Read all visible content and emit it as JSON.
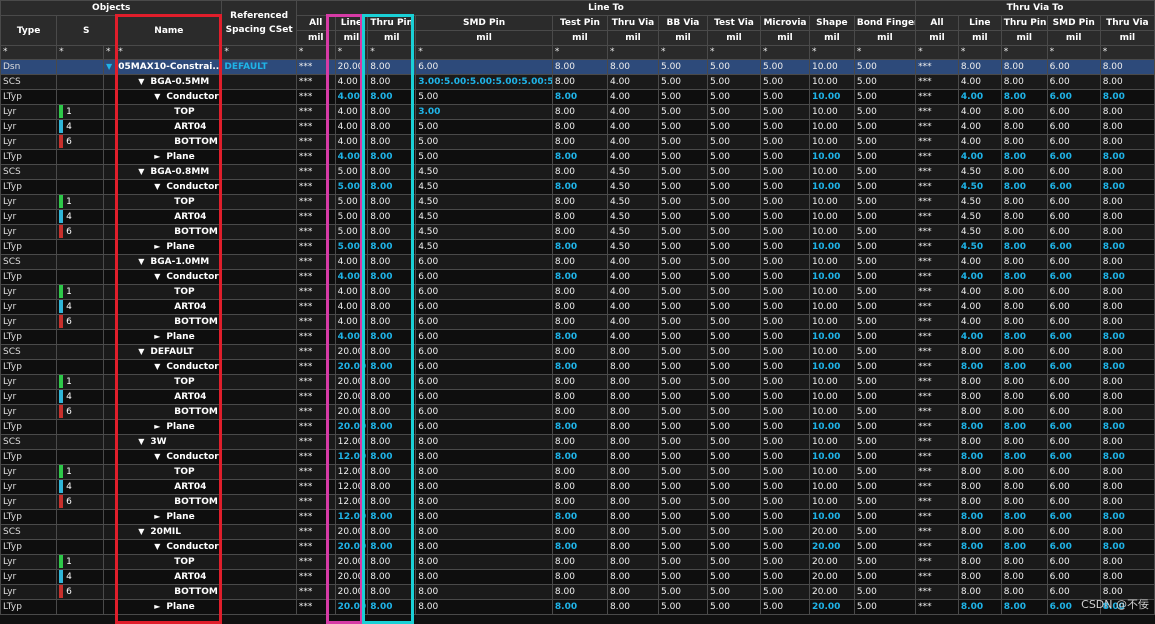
{
  "headers": {
    "objects": "Objects",
    "type": "Type",
    "s": "S",
    "name": "Name",
    "referenced": "Referenced Spacing CSet",
    "line_to": "Line To",
    "thru_via_to": "Thru Via To",
    "cols": [
      "All",
      "Line",
      "Thru Pin",
      "SMD Pin",
      "Test Pin",
      "Thru Via",
      "BB Via",
      "Test Via",
      "Microvia",
      "Shape",
      "Bond Finger",
      "All",
      "Line",
      "Thru Pin",
      "SMD Pin",
      "Thru Via"
    ],
    "unit": "mil",
    "filter": "*"
  },
  "rows": [
    {
      "type": "Dsn",
      "s": "",
      "indent": 0,
      "arrow": "▼",
      "name": "05MAX10-Constrai...",
      "ref": "DEFAULT",
      "v": [
        "***",
        "20.00",
        "8.00",
        "6.00",
        "8.00",
        "8.00",
        "5.00",
        "5.00",
        "5.00",
        "10.00",
        "5.00",
        "***",
        "8.00",
        "8.00",
        "6.00",
        "8.00"
      ],
      "cyan": false,
      "sel": true
    },
    {
      "type": "SCS",
      "s": "",
      "indent": 1,
      "arrow": "▼",
      "name": "BGA-0.5MM",
      "ref": "",
      "v": [
        "***",
        "4.00",
        "8.00",
        "3.00:5.00:5.00:5.00:5.00:5.00",
        "8.00",
        "4.00",
        "5.00",
        "5.00",
        "5.00",
        "10.00",
        "5.00",
        "***",
        "4.00",
        "8.00",
        "6.00",
        "8.00"
      ],
      "cyan": false
    },
    {
      "type": "LTyp",
      "s": "",
      "indent": 2,
      "arrow": "▼",
      "name": "Conductor",
      "ref": "",
      "v": [
        "***",
        "4.00",
        "8.00",
        "5.00",
        "8.00",
        "4.00",
        "5.00",
        "5.00",
        "5.00",
        "10.00",
        "5.00",
        "***",
        "4.00",
        "8.00",
        "6.00",
        "8.00"
      ],
      "cyan": true
    },
    {
      "type": "Lyr",
      "s": "1",
      "bar": "#2ec94a",
      "indent": 3,
      "arrow": "",
      "name": "TOP",
      "ref": "",
      "v": [
        "***",
        "4.00",
        "8.00",
        "3.00",
        "8.00",
        "4.00",
        "5.00",
        "5.00",
        "5.00",
        "10.00",
        "5.00",
        "***",
        "4.00",
        "8.00",
        "6.00",
        "8.00"
      ],
      "cyan": false
    },
    {
      "type": "Lyr",
      "s": "4",
      "bar": "#2fb6d8",
      "indent": 3,
      "arrow": "",
      "name": "ART04",
      "ref": "",
      "v": [
        "***",
        "4.00",
        "8.00",
        "5.00",
        "8.00",
        "4.00",
        "5.00",
        "5.00",
        "5.00",
        "10.00",
        "5.00",
        "***",
        "4.00",
        "8.00",
        "6.00",
        "8.00"
      ],
      "cyan": false
    },
    {
      "type": "Lyr",
      "s": "6",
      "bar": "#c8302c",
      "indent": 3,
      "arrow": "",
      "name": "BOTTOM",
      "ref": "",
      "v": [
        "***",
        "4.00",
        "8.00",
        "5.00",
        "8.00",
        "4.00",
        "5.00",
        "5.00",
        "5.00",
        "10.00",
        "5.00",
        "***",
        "4.00",
        "8.00",
        "6.00",
        "8.00"
      ],
      "cyan": false
    },
    {
      "type": "LTyp",
      "s": "",
      "indent": 2,
      "arrow": "►",
      "name": "Plane",
      "ref": "",
      "v": [
        "***",
        "4.00",
        "8.00",
        "5.00",
        "8.00",
        "4.00",
        "5.00",
        "5.00",
        "5.00",
        "10.00",
        "5.00",
        "***",
        "4.00",
        "8.00",
        "6.00",
        "8.00"
      ],
      "cyan": true
    },
    {
      "type": "SCS",
      "s": "",
      "indent": 1,
      "arrow": "▼",
      "name": "BGA-0.8MM",
      "ref": "",
      "v": [
        "***",
        "5.00",
        "8.00",
        "4.50",
        "8.00",
        "4.50",
        "5.00",
        "5.00",
        "5.00",
        "10.00",
        "5.00",
        "***",
        "4.50",
        "8.00",
        "6.00",
        "8.00"
      ],
      "cyan": false
    },
    {
      "type": "LTyp",
      "s": "",
      "indent": 2,
      "arrow": "▼",
      "name": "Conductor",
      "ref": "",
      "v": [
        "***",
        "5.00",
        "8.00",
        "4.50",
        "8.00",
        "4.50",
        "5.00",
        "5.00",
        "5.00",
        "10.00",
        "5.00",
        "***",
        "4.50",
        "8.00",
        "6.00",
        "8.00"
      ],
      "cyan": true
    },
    {
      "type": "Lyr",
      "s": "1",
      "bar": "#2ec94a",
      "indent": 3,
      "arrow": "",
      "name": "TOP",
      "ref": "",
      "v": [
        "***",
        "5.00",
        "8.00",
        "4.50",
        "8.00",
        "4.50",
        "5.00",
        "5.00",
        "5.00",
        "10.00",
        "5.00",
        "***",
        "4.50",
        "8.00",
        "6.00",
        "8.00"
      ],
      "cyan": false
    },
    {
      "type": "Lyr",
      "s": "4",
      "bar": "#2fb6d8",
      "indent": 3,
      "arrow": "",
      "name": "ART04",
      "ref": "",
      "v": [
        "***",
        "5.00",
        "8.00",
        "4.50",
        "8.00",
        "4.50",
        "5.00",
        "5.00",
        "5.00",
        "10.00",
        "5.00",
        "***",
        "4.50",
        "8.00",
        "6.00",
        "8.00"
      ],
      "cyan": false
    },
    {
      "type": "Lyr",
      "s": "6",
      "bar": "#c8302c",
      "indent": 3,
      "arrow": "",
      "name": "BOTTOM",
      "ref": "",
      "v": [
        "***",
        "5.00",
        "8.00",
        "4.50",
        "8.00",
        "4.50",
        "5.00",
        "5.00",
        "5.00",
        "10.00",
        "5.00",
        "***",
        "4.50",
        "8.00",
        "6.00",
        "8.00"
      ],
      "cyan": false
    },
    {
      "type": "LTyp",
      "s": "",
      "indent": 2,
      "arrow": "►",
      "name": "Plane",
      "ref": "",
      "v": [
        "***",
        "5.00",
        "8.00",
        "4.50",
        "8.00",
        "4.50",
        "5.00",
        "5.00",
        "5.00",
        "10.00",
        "5.00",
        "***",
        "4.50",
        "8.00",
        "6.00",
        "8.00"
      ],
      "cyan": true
    },
    {
      "type": "SCS",
      "s": "",
      "indent": 1,
      "arrow": "▼",
      "name": "BGA-1.0MM",
      "ref": "",
      "v": [
        "***",
        "4.00",
        "8.00",
        "6.00",
        "8.00",
        "4.00",
        "5.00",
        "5.00",
        "5.00",
        "10.00",
        "5.00",
        "***",
        "4.00",
        "8.00",
        "6.00",
        "8.00"
      ],
      "cyan": false
    },
    {
      "type": "LTyp",
      "s": "",
      "indent": 2,
      "arrow": "▼",
      "name": "Conductor",
      "ref": "",
      "v": [
        "***",
        "4.00",
        "8.00",
        "6.00",
        "8.00",
        "4.00",
        "5.00",
        "5.00",
        "5.00",
        "10.00",
        "5.00",
        "***",
        "4.00",
        "8.00",
        "6.00",
        "8.00"
      ],
      "cyan": true
    },
    {
      "type": "Lyr",
      "s": "1",
      "bar": "#2ec94a",
      "indent": 3,
      "arrow": "",
      "name": "TOP",
      "ref": "",
      "v": [
        "***",
        "4.00",
        "8.00",
        "6.00",
        "8.00",
        "4.00",
        "5.00",
        "5.00",
        "5.00",
        "10.00",
        "5.00",
        "***",
        "4.00",
        "8.00",
        "6.00",
        "8.00"
      ],
      "cyan": false
    },
    {
      "type": "Lyr",
      "s": "4",
      "bar": "#2fb6d8",
      "indent": 3,
      "arrow": "",
      "name": "ART04",
      "ref": "",
      "v": [
        "***",
        "4.00",
        "8.00",
        "6.00",
        "8.00",
        "4.00",
        "5.00",
        "5.00",
        "5.00",
        "10.00",
        "5.00",
        "***",
        "4.00",
        "8.00",
        "6.00",
        "8.00"
      ],
      "cyan": false
    },
    {
      "type": "Lyr",
      "s": "6",
      "bar": "#c8302c",
      "indent": 3,
      "arrow": "",
      "name": "BOTTOM",
      "ref": "",
      "v": [
        "***",
        "4.00",
        "8.00",
        "6.00",
        "8.00",
        "4.00",
        "5.00",
        "5.00",
        "5.00",
        "10.00",
        "5.00",
        "***",
        "4.00",
        "8.00",
        "6.00",
        "8.00"
      ],
      "cyan": false
    },
    {
      "type": "LTyp",
      "s": "",
      "indent": 2,
      "arrow": "►",
      "name": "Plane",
      "ref": "",
      "v": [
        "***",
        "4.00",
        "8.00",
        "6.00",
        "8.00",
        "4.00",
        "5.00",
        "5.00",
        "5.00",
        "10.00",
        "5.00",
        "***",
        "4.00",
        "8.00",
        "6.00",
        "8.00"
      ],
      "cyan": true
    },
    {
      "type": "SCS",
      "s": "",
      "indent": 1,
      "arrow": "▼",
      "name": "DEFAULT",
      "ref": "",
      "v": [
        "***",
        "20.00",
        "8.00",
        "6.00",
        "8.00",
        "8.00",
        "5.00",
        "5.00",
        "5.00",
        "10.00",
        "5.00",
        "***",
        "8.00",
        "8.00",
        "6.00",
        "8.00"
      ],
      "cyan": false
    },
    {
      "type": "LTyp",
      "s": "",
      "indent": 2,
      "arrow": "▼",
      "name": "Conductor",
      "ref": "",
      "v": [
        "***",
        "20.00",
        "8.00",
        "6.00",
        "8.00",
        "8.00",
        "5.00",
        "5.00",
        "5.00",
        "10.00",
        "5.00",
        "***",
        "8.00",
        "8.00",
        "6.00",
        "8.00"
      ],
      "cyan": true
    },
    {
      "type": "Lyr",
      "s": "1",
      "bar": "#2ec94a",
      "indent": 3,
      "arrow": "",
      "name": "TOP",
      "ref": "",
      "v": [
        "***",
        "20.00",
        "8.00",
        "6.00",
        "8.00",
        "8.00",
        "5.00",
        "5.00",
        "5.00",
        "10.00",
        "5.00",
        "***",
        "8.00",
        "8.00",
        "6.00",
        "8.00"
      ],
      "cyan": false
    },
    {
      "type": "Lyr",
      "s": "4",
      "bar": "#2fb6d8",
      "indent": 3,
      "arrow": "",
      "name": "ART04",
      "ref": "",
      "v": [
        "***",
        "20.00",
        "8.00",
        "6.00",
        "8.00",
        "8.00",
        "5.00",
        "5.00",
        "5.00",
        "10.00",
        "5.00",
        "***",
        "8.00",
        "8.00",
        "6.00",
        "8.00"
      ],
      "cyan": false
    },
    {
      "type": "Lyr",
      "s": "6",
      "bar": "#c8302c",
      "indent": 3,
      "arrow": "",
      "name": "BOTTOM",
      "ref": "",
      "v": [
        "***",
        "20.00",
        "8.00",
        "6.00",
        "8.00",
        "8.00",
        "5.00",
        "5.00",
        "5.00",
        "10.00",
        "5.00",
        "***",
        "8.00",
        "8.00",
        "6.00",
        "8.00"
      ],
      "cyan": false
    },
    {
      "type": "LTyp",
      "s": "",
      "indent": 2,
      "arrow": "►",
      "name": "Plane",
      "ref": "",
      "v": [
        "***",
        "20.00",
        "8.00",
        "6.00",
        "8.00",
        "8.00",
        "5.00",
        "5.00",
        "5.00",
        "10.00",
        "5.00",
        "***",
        "8.00",
        "8.00",
        "6.00",
        "8.00"
      ],
      "cyan": true
    },
    {
      "type": "SCS",
      "s": "",
      "indent": 1,
      "arrow": "▼",
      "name": "3W",
      "ref": "",
      "v": [
        "***",
        "12.00",
        "8.00",
        "8.00",
        "8.00",
        "8.00",
        "5.00",
        "5.00",
        "5.00",
        "10.00",
        "5.00",
        "***",
        "8.00",
        "8.00",
        "6.00",
        "8.00"
      ],
      "cyan": false
    },
    {
      "type": "LTyp",
      "s": "",
      "indent": 2,
      "arrow": "▼",
      "name": "Conductor",
      "ref": "",
      "v": [
        "***",
        "12.00",
        "8.00",
        "8.00",
        "8.00",
        "8.00",
        "5.00",
        "5.00",
        "5.00",
        "10.00",
        "5.00",
        "***",
        "8.00",
        "8.00",
        "6.00",
        "8.00"
      ],
      "cyan": true
    },
    {
      "type": "Lyr",
      "s": "1",
      "bar": "#2ec94a",
      "indent": 3,
      "arrow": "",
      "name": "TOP",
      "ref": "",
      "v": [
        "***",
        "12.00",
        "8.00",
        "8.00",
        "8.00",
        "8.00",
        "5.00",
        "5.00",
        "5.00",
        "10.00",
        "5.00",
        "***",
        "8.00",
        "8.00",
        "6.00",
        "8.00"
      ],
      "cyan": false
    },
    {
      "type": "Lyr",
      "s": "4",
      "bar": "#2fb6d8",
      "indent": 3,
      "arrow": "",
      "name": "ART04",
      "ref": "",
      "v": [
        "***",
        "12.00",
        "8.00",
        "8.00",
        "8.00",
        "8.00",
        "5.00",
        "5.00",
        "5.00",
        "10.00",
        "5.00",
        "***",
        "8.00",
        "8.00",
        "6.00",
        "8.00"
      ],
      "cyan": false
    },
    {
      "type": "Lyr",
      "s": "6",
      "bar": "#c8302c",
      "indent": 3,
      "arrow": "",
      "name": "BOTTOM",
      "ref": "",
      "v": [
        "***",
        "12.00",
        "8.00",
        "8.00",
        "8.00",
        "8.00",
        "5.00",
        "5.00",
        "5.00",
        "10.00",
        "5.00",
        "***",
        "8.00",
        "8.00",
        "6.00",
        "8.00"
      ],
      "cyan": false
    },
    {
      "type": "LTyp",
      "s": "",
      "indent": 2,
      "arrow": "►",
      "name": "Plane",
      "ref": "",
      "v": [
        "***",
        "12.00",
        "8.00",
        "8.00",
        "8.00",
        "8.00",
        "5.00",
        "5.00",
        "5.00",
        "10.00",
        "5.00",
        "***",
        "8.00",
        "8.00",
        "6.00",
        "8.00"
      ],
      "cyan": true
    },
    {
      "type": "SCS",
      "s": "",
      "indent": 1,
      "arrow": "▼",
      "name": "20MIL",
      "ref": "",
      "v": [
        "***",
        "20.00",
        "8.00",
        "8.00",
        "8.00",
        "8.00",
        "5.00",
        "5.00",
        "5.00",
        "20.00",
        "5.00",
        "***",
        "8.00",
        "8.00",
        "6.00",
        "8.00"
      ],
      "cyan": false
    },
    {
      "type": "LTyp",
      "s": "",
      "indent": 2,
      "arrow": "▼",
      "name": "Conductor",
      "ref": "",
      "v": [
        "***",
        "20.00",
        "8.00",
        "8.00",
        "8.00",
        "8.00",
        "5.00",
        "5.00",
        "5.00",
        "20.00",
        "5.00",
        "***",
        "8.00",
        "8.00",
        "6.00",
        "8.00"
      ],
      "cyan": true
    },
    {
      "type": "Lyr",
      "s": "1",
      "bar": "#2ec94a",
      "indent": 3,
      "arrow": "",
      "name": "TOP",
      "ref": "",
      "v": [
        "***",
        "20.00",
        "8.00",
        "8.00",
        "8.00",
        "8.00",
        "5.00",
        "5.00",
        "5.00",
        "20.00",
        "5.00",
        "***",
        "8.00",
        "8.00",
        "6.00",
        "8.00"
      ],
      "cyan": false
    },
    {
      "type": "Lyr",
      "s": "4",
      "bar": "#2fb6d8",
      "indent": 3,
      "arrow": "",
      "name": "ART04",
      "ref": "",
      "v": [
        "***",
        "20.00",
        "8.00",
        "8.00",
        "8.00",
        "8.00",
        "5.00",
        "5.00",
        "5.00",
        "20.00",
        "5.00",
        "***",
        "8.00",
        "8.00",
        "6.00",
        "8.00"
      ],
      "cyan": false
    },
    {
      "type": "Lyr",
      "s": "6",
      "bar": "#c8302c",
      "indent": 3,
      "arrow": "",
      "name": "BOTTOM",
      "ref": "",
      "v": [
        "***",
        "20.00",
        "8.00",
        "8.00",
        "8.00",
        "8.00",
        "5.00",
        "5.00",
        "5.00",
        "20.00",
        "5.00",
        "***",
        "8.00",
        "8.00",
        "6.00",
        "8.00"
      ],
      "cyan": false
    },
    {
      "type": "LTyp",
      "s": "",
      "indent": 2,
      "arrow": "►",
      "name": "Plane",
      "ref": "",
      "v": [
        "***",
        "20.00",
        "8.00",
        "8.00",
        "8.00",
        "8.00",
        "5.00",
        "5.00",
        "5.00",
        "20.00",
        "5.00",
        "***",
        "8.00",
        "8.00",
        "6.00",
        "8.00"
      ],
      "cyan": true
    }
  ],
  "watermark": "CSDN @不佞",
  "colors": {
    "highlight_red": "#e01e2b",
    "highlight_magenta": "#d63ba6",
    "highlight_cyan": "#1ad0d6",
    "cyan_text": "#1fb4e8"
  }
}
